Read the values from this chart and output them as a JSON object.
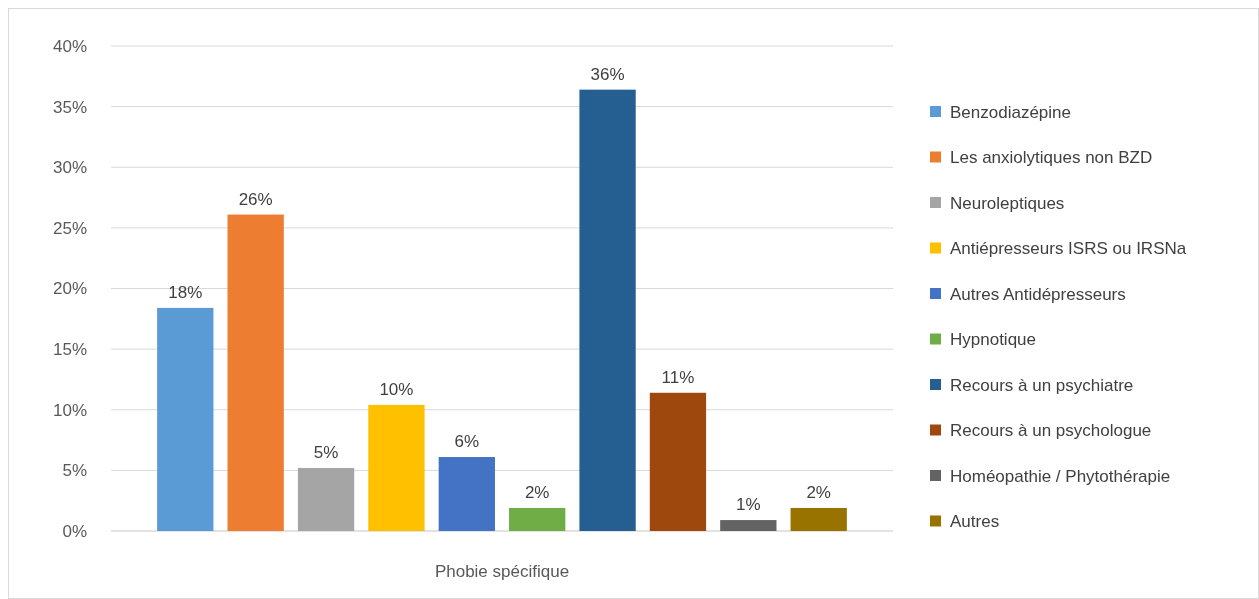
{
  "chart_data": {
    "type": "bar",
    "categories": [
      "Phobie spécifique"
    ],
    "series": [
      {
        "name": "Benzodiazépine",
        "color": "#5b9bd5",
        "values": [
          18.4
        ],
        "value_labels": [
          "18%"
        ]
      },
      {
        "name": "Les anxiolytiques non BZD",
        "color": "#ed7d31",
        "values": [
          26.1
        ],
        "value_labels": [
          "26%"
        ]
      },
      {
        "name": "Neuroleptiques",
        "color": "#a5a5a5",
        "values": [
          5.2
        ],
        "value_labels": [
          "5%"
        ]
      },
      {
        "name": "Antiépresseurs ISRS ou IRSNa",
        "color": "#ffc000",
        "values": [
          10.4
        ],
        "value_labels": [
          "10%"
        ]
      },
      {
        "name": "Autres Antidépresseurs",
        "color": "#4472c4",
        "values": [
          6.1
        ],
        "value_labels": [
          "6%"
        ]
      },
      {
        "name": "Hypnotique",
        "color": "#70ad47",
        "values": [
          1.9
        ],
        "value_labels": [
          "2%"
        ]
      },
      {
        "name": "Recours à un psychiatre",
        "color": "#255e91",
        "values": [
          36.4
        ],
        "value_labels": [
          "36%"
        ]
      },
      {
        "name": "Recours à un psychologue",
        "color": "#9e480e",
        "values": [
          11.4
        ],
        "value_labels": [
          "11%"
        ]
      },
      {
        "name": "Homéopathie / Phytothérapie",
        "color": "#636363",
        "values": [
          0.9
        ],
        "value_labels": [
          "1%"
        ]
      },
      {
        "name": "Autres",
        "color": "#997300",
        "values": [
          1.9
        ],
        "value_labels": [
          "2%"
        ]
      }
    ],
    "ylim": [
      0,
      40
    ],
    "yticks": [
      {
        "value": 0,
        "label": "0%"
      },
      {
        "value": 5,
        "label": "5%"
      },
      {
        "value": 10,
        "label": "10%"
      },
      {
        "value": 15,
        "label": "15%"
      },
      {
        "value": 20,
        "label": "20%"
      },
      {
        "value": 25,
        "label": "25%"
      },
      {
        "value": 30,
        "label": "30%"
      },
      {
        "value": 35,
        "label": "35%"
      },
      {
        "value": 40,
        "label": "40%"
      }
    ],
    "grid": "y",
    "legend": "right"
  }
}
